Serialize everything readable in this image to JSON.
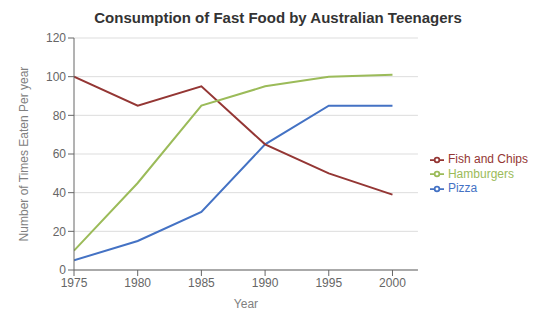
{
  "chart_data": {
    "type": "line",
    "title": "Consumption of Fast Food by Australian Teenagers",
    "xlabel": "Year",
    "ylabel": "Number of Times Eaten Per year",
    "x": [
      1975,
      1980,
      1985,
      1990,
      1995,
      2000
    ],
    "series": [
      {
        "name": "Pizza",
        "color": "#4472c4",
        "values": [
          5,
          15,
          30,
          65,
          85,
          85
        ]
      },
      {
        "name": "Fish and Chips",
        "color": "#943634",
        "values": [
          100,
          85,
          95,
          65,
          50,
          39
        ]
      },
      {
        "name": "Hamburgers",
        "color": "#9bbb59",
        "values": [
          10,
          45,
          85,
          95,
          100,
          101
        ]
      }
    ],
    "xlim": [
      1975,
      2002
    ],
    "xticks": [
      1975,
      1980,
      1985,
      1990,
      1995,
      2000
    ],
    "ylim": [
      0,
      120
    ],
    "yticks": [
      0,
      20,
      40,
      60,
      80,
      100,
      120
    ],
    "grid": "y",
    "legend": "right"
  }
}
